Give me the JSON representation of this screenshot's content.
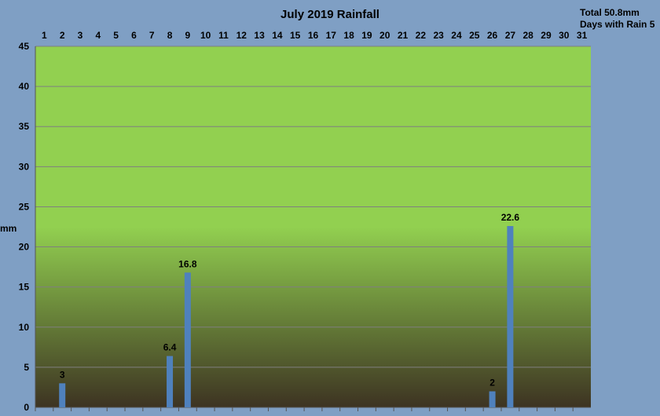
{
  "chart_data": {
    "type": "bar",
    "title": "July 2019 Rainfall",
    "ylabel": "mm",
    "xlabel": "",
    "ylim": [
      0,
      45
    ],
    "yticks": [
      0,
      5,
      10,
      15,
      20,
      25,
      30,
      35,
      40,
      45
    ],
    "grid": true,
    "categories": [
      "1",
      "2",
      "3",
      "4",
      "5",
      "6",
      "7",
      "8",
      "9",
      "10",
      "11",
      "12",
      "13",
      "14",
      "15",
      "16",
      "17",
      "18",
      "19",
      "20",
      "21",
      "22",
      "23",
      "24",
      "25",
      "26",
      "27",
      "28",
      "29",
      "30",
      "31"
    ],
    "values": [
      0,
      3,
      0,
      0,
      0,
      0,
      0,
      6.4,
      16.8,
      0,
      0,
      0,
      0,
      0,
      0,
      0,
      0,
      0,
      0,
      0,
      0,
      0,
      0,
      0,
      0,
      2,
      22.6,
      0,
      0,
      0,
      0
    ],
    "data_labels": [
      "",
      "3",
      "",
      "",
      "",
      "",
      "",
      "6.4",
      "16.8",
      "",
      "",
      "",
      "",
      "",
      "",
      "",
      "",
      "",
      "",
      "",
      "",
      "",
      "",
      "",
      "",
      "2",
      "22.6",
      "",
      "",
      "",
      ""
    ],
    "summary": {
      "total": "Total 50.8mm",
      "days_with_rain": "Days with Rain 5"
    },
    "colors": {
      "bar": "#4f81bd",
      "plot_top": "#92d050",
      "plot_bottom": "#3d3322",
      "background": "#7f9fc4"
    }
  }
}
